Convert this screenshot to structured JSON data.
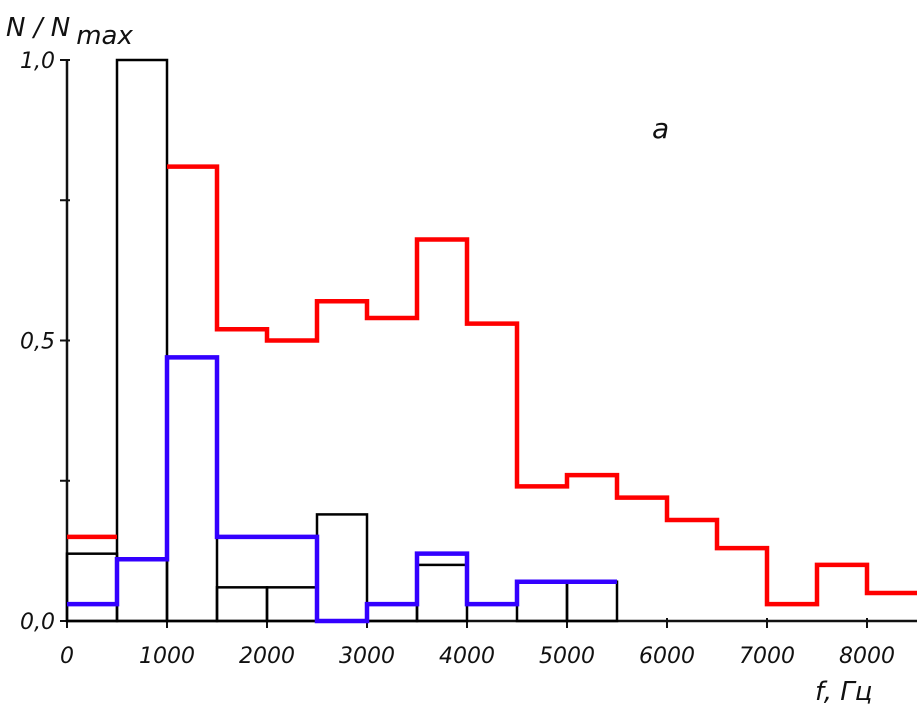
{
  "chart_data": {
    "type": "line",
    "subtype": "step-histogram",
    "title": "",
    "panel_label": "a",
    "ylabel_main": "N / N",
    "ylabel_sub": "max",
    "xlabel": "f, Гц",
    "xlim": [
      0,
      8500
    ],
    "ylim": [
      0,
      1.0
    ],
    "x_ticks": [
      {
        "value": 0,
        "label": "0"
      },
      {
        "value": 1000,
        "label": "1000"
      },
      {
        "value": 2000,
        "label": "2000"
      },
      {
        "value": 3000,
        "label": "3000"
      },
      {
        "value": 4000,
        "label": "4000"
      },
      {
        "value": 5000,
        "label": "5000"
      },
      {
        "value": 6000,
        "label": "6000"
      },
      {
        "value": 7000,
        "label": "7000"
      },
      {
        "value": 8000,
        "label": "8000"
      }
    ],
    "y_ticks": [
      {
        "value": 0.0,
        "label": "0,0"
      },
      {
        "value": 0.25,
        "label": ""
      },
      {
        "value": 0.5,
        "label": "0,5"
      },
      {
        "value": 0.75,
        "label": ""
      },
      {
        "value": 1.0,
        "label": "1,0"
      }
    ],
    "bin_width": 500,
    "series": [
      {
        "color": "#000000",
        "bins_start": [
          0,
          500,
          1000,
          1500,
          2000,
          2500,
          3000,
          3500,
          4000,
          4500,
          5000
        ],
        "values": [
          0.12,
          1.0,
          0.47,
          0.06,
          0.06,
          0.19,
          0.03,
          0.1,
          0.0,
          0.07,
          0.07
        ]
      },
      {
        "color": "#ff0000",
        "bins_start": [
          0,
          1000,
          1500,
          2000,
          2500,
          3000,
          3500,
          4000,
          4500,
          5000,
          5500,
          6000,
          6500,
          7000,
          7500,
          8000
        ],
        "values": [
          0.15,
          0.81,
          0.52,
          0.5,
          0.57,
          0.54,
          0.68,
          0.53,
          0.24,
          0.26,
          0.22,
          0.18,
          0.13,
          0.03,
          0.1,
          0.05
        ]
      },
      {
        "color": "#3300ff",
        "bins_start": [
          0,
          500,
          1000,
          1500,
          2000,
          2500,
          3000,
          3500,
          4000,
          4500,
          5000
        ],
        "values": [
          0.03,
          0.11,
          0.47,
          0.15,
          0.15,
          0.0,
          0.03,
          0.12,
          0.03,
          0.07,
          0.07
        ]
      }
    ]
  }
}
